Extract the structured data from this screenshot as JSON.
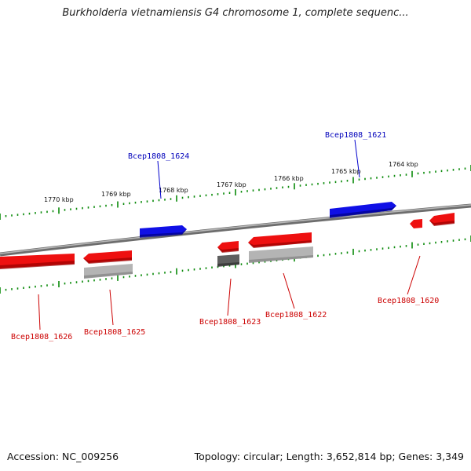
{
  "title": "Burkholderia vietnamiensis G4 chromosome 1, complete sequenc...",
  "footer": {
    "accession": "Accession: NC_009256",
    "summary": "Topology: circular; Length: 3,652,814 bp; Genes: 3,349"
  },
  "colors": {
    "forward": "#0000dd",
    "reverse": "#ee0000",
    "gray_light": "#b0b0b0",
    "gray_dark": "#606060",
    "ticks": "#0a8a0a",
    "backbone": "#888888"
  },
  "scale_labels": [
    "1770 kbp",
    "1769 kbp",
    "1768 kbp",
    "1767 kbp",
    "1766 kbp",
    "1765 kbp",
    "1764 kbp"
  ],
  "gene_labels": {
    "forward": [
      "Bcep1808_1624",
      "Bcep1808_1621"
    ],
    "reverse": [
      "Bcep1808_1626",
      "Bcep1808_1625",
      "Bcep1808_1623",
      "Bcep1808_1622",
      "Bcep1808_1620"
    ]
  }
}
